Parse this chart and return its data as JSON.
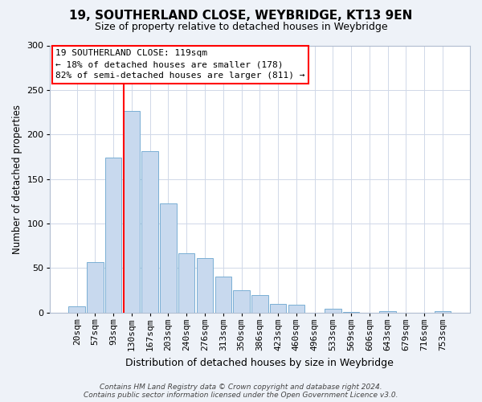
{
  "title": "19, SOUTHERLAND CLOSE, WEYBRIDGE, KT13 9EN",
  "subtitle": "Size of property relative to detached houses in Weybridge",
  "xlabel": "Distribution of detached houses by size in Weybridge",
  "ylabel": "Number of detached properties",
  "bar_labels": [
    "20sqm",
    "57sqm",
    "93sqm",
    "130sqm",
    "167sqm",
    "203sqm",
    "240sqm",
    "276sqm",
    "313sqm",
    "350sqm",
    "386sqm",
    "423sqm",
    "460sqm",
    "496sqm",
    "533sqm",
    "569sqm",
    "606sqm",
    "643sqm",
    "679sqm",
    "716sqm",
    "753sqm"
  ],
  "bar_values": [
    7,
    57,
    174,
    226,
    181,
    123,
    67,
    61,
    40,
    25,
    20,
    10,
    9,
    0,
    4,
    1,
    0,
    2,
    0,
    0,
    2
  ],
  "bar_color": "#c8d9ee",
  "bar_edgecolor": "#7aafd4",
  "ylim": [
    0,
    300
  ],
  "yticks": [
    0,
    50,
    100,
    150,
    200,
    250,
    300
  ],
  "annotation_title": "19 SOUTHERLAND CLOSE: 119sqm",
  "annotation_line1": "← 18% of detached houses are smaller (178)",
  "annotation_line2": "82% of semi-detached houses are larger (811) →",
  "footer1": "Contains HM Land Registry data © Crown copyright and database right 2024.",
  "footer2": "Contains public sector information licensed under the Open Government Licence v3.0.",
  "bg_color": "#eef2f8",
  "plot_bg_color": "#ffffff",
  "grid_color": "#d0d8e8",
  "title_fontsize": 11,
  "subtitle_fontsize": 9,
  "xlabel_fontsize": 9,
  "ylabel_fontsize": 8.5,
  "tick_fontsize": 8,
  "annotation_fontsize": 8,
  "footer_fontsize": 6.5
}
